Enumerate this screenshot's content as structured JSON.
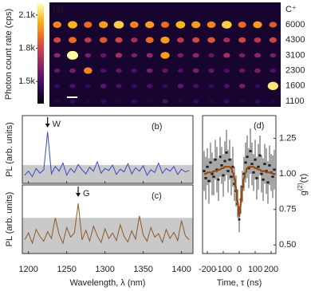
{
  "chart_data": [
    {
      "type": "heatmap",
      "panel_label": "(a)",
      "colorbar_label": "Photon count rate (cps)",
      "colormap": "inferno",
      "zlim": [
        1300,
        2200
      ],
      "zticks": [
        {
          "value": 2100,
          "label": "2.1k"
        },
        {
          "value": 1800,
          "label": "1.8k"
        },
        {
          "value": 1500,
          "label": "1.5k"
        }
      ],
      "row_labels_title": "C⁺",
      "row_labels": [
        6000,
        4300,
        3100,
        2300,
        1600,
        1100
      ],
      "row_label_color": "#9a7420",
      "z": [
        [
          1950,
          2050,
          1900,
          2000,
          2100,
          1950,
          2000,
          1900,
          2050,
          2000,
          1950,
          2100,
          1900,
          2000,
          1850
        ],
        [
          1800,
          1900,
          1750,
          1850,
          1800,
          1700,
          1900,
          2000,
          1750,
          1800,
          1850,
          1700,
          1800,
          1750,
          1800
        ],
        [
          1650,
          2200,
          1600,
          1550,
          1700,
          1600,
          1650,
          2000,
          1600,
          1650,
          1550,
          1700,
          1600,
          1650,
          1600
        ],
        [
          1550,
          1600,
          1950,
          1500,
          1550,
          1500,
          1600,
          1550,
          1500,
          1600,
          1550,
          1500,
          1550,
          1600,
          1500
        ],
        [
          1450,
          1500,
          1450,
          1550,
          1500,
          1450,
          1500,
          1450,
          1550,
          1500,
          1450,
          1500,
          1600,
          1450,
          2150
        ],
        [
          1400,
          1450,
          1400,
          1450,
          1400,
          1450,
          1400,
          1500,
          1400,
          1450,
          1400,
          1450,
          1400,
          1450,
          1400
        ]
      ]
    },
    {
      "type": "line",
      "panel_label": "(b)",
      "y_label": "PL (arb. units)",
      "annotation": {
        "text": "W",
        "x": 1225
      },
      "color": "#3a46cc",
      "band": 0.27,
      "band_color": "#c9c9c9",
      "xlim": [
        1192,
        1415
      ],
      "xticks": [
        1200,
        1250,
        1300,
        1350,
        1400
      ],
      "ylim": [
        0,
        1
      ],
      "x": [
        1195,
        1200,
        1205,
        1210,
        1215,
        1220,
        1225,
        1230,
        1235,
        1240,
        1245,
        1250,
        1255,
        1260,
        1265,
        1270,
        1275,
        1280,
        1285,
        1290,
        1295,
        1300,
        1305,
        1310,
        1315,
        1320,
        1325,
        1330,
        1335,
        1340,
        1345,
        1350,
        1355,
        1360,
        1365,
        1370,
        1375,
        1380,
        1385,
        1390,
        1395,
        1400,
        1405,
        1410
      ],
      "values": [
        0.12,
        0.18,
        0.1,
        0.22,
        0.15,
        0.2,
        0.76,
        0.14,
        0.25,
        0.18,
        0.3,
        0.12,
        0.22,
        0.16,
        0.28,
        0.2,
        0.14,
        0.24,
        0.18,
        0.32,
        0.15,
        0.22,
        0.19,
        0.27,
        0.13,
        0.21,
        0.17,
        0.29,
        0.14,
        0.23,
        0.18,
        0.26,
        0.12,
        0.2,
        0.16,
        0.3,
        0.15,
        0.22,
        0.18,
        0.25,
        0.13,
        0.21,
        0.17,
        0.19
      ]
    },
    {
      "type": "line",
      "panel_label": "(c)",
      "y_label": "PL (arb. units)",
      "annotation": {
        "text": "G",
        "x": 1265
      },
      "color": "#8a5a2a",
      "band": 0.52,
      "band_color": "#c9c9c9",
      "x_label": "Wavelength, λ (nm)",
      "xlim": [
        1192,
        1415
      ],
      "xticks": [
        1200,
        1250,
        1300,
        1350,
        1400
      ],
      "ylim": [
        0,
        1
      ],
      "x": [
        1195,
        1200,
        1205,
        1210,
        1215,
        1220,
        1225,
        1230,
        1235,
        1240,
        1245,
        1250,
        1255,
        1260,
        1265,
        1270,
        1275,
        1280,
        1285,
        1290,
        1295,
        1300,
        1305,
        1310,
        1315,
        1320,
        1325,
        1330,
        1335,
        1340,
        1345,
        1350,
        1355,
        1360,
        1365,
        1370,
        1375,
        1380,
        1385,
        1390,
        1395,
        1400,
        1405,
        1410
      ],
      "values": [
        0.2,
        0.3,
        0.15,
        0.35,
        0.25,
        0.18,
        0.32,
        0.22,
        0.52,
        0.28,
        0.15,
        0.38,
        0.24,
        0.3,
        0.73,
        0.2,
        0.34,
        0.18,
        0.4,
        0.26,
        0.16,
        0.36,
        0.22,
        0.3,
        0.19,
        0.42,
        0.25,
        0.17,
        0.33,
        0.21,
        0.55,
        0.27,
        0.18,
        0.38,
        0.24,
        0.29,
        0.16,
        0.35,
        0.22,
        0.31,
        0.19,
        0.48,
        0.26,
        0.2
      ]
    },
    {
      "type": "scatter",
      "panel_label": "(d)",
      "x_label": "Time, τ (ns)",
      "y_label": {
        "base": "g",
        "sup": "(2)",
        "rest": "(τ)"
      },
      "xlim": [
        -230,
        230
      ],
      "xticks": [
        -200,
        -100,
        0,
        100,
        200
      ],
      "ylim": [
        0.44,
        1.41
      ],
      "yticks": [
        {
          "value": 0.5,
          "label": "0.50"
        },
        {
          "value": 0.75,
          "label": "0.75"
        },
        {
          "value": 1,
          "label": "1.00"
        },
        {
          "value": 1.25,
          "label": "1.25"
        }
      ],
      "x": [
        -220,
        -210,
        -200,
        -190,
        -180,
        -170,
        -160,
        -150,
        -140,
        -130,
        -120,
        -110,
        -100,
        -90,
        -80,
        -70,
        -60,
        -50,
        -40,
        -30,
        -20,
        -10,
        0,
        10,
        20,
        30,
        40,
        50,
        60,
        70,
        80,
        90,
        100,
        110,
        120,
        130,
        140,
        150,
        160,
        170,
        180,
        190,
        200,
        210,
        220
      ],
      "series": [
        {
          "color": "#222222",
          "values": [
            1.02,
            0.97,
            1.05,
            0.95,
            1.08,
            1.0,
            0.98,
            1.1,
            1.03,
            0.96,
            1.12,
            1.06,
            0.99,
            1.09,
            1.15,
            1.02,
            1.1,
            0.98,
            1.05,
            0.93,
            0.88,
            0.79,
            0.68,
            0.82,
            0.91,
            1.0,
            1.08,
            1.12,
            1.04,
            1.16,
            1.07,
            1.01,
            1.1,
            0.97,
            1.05,
            1.13,
            1.0,
            0.96,
            1.07,
            1.02,
            0.94,
            1.06,
            1.01,
            0.98,
            1.03
          ],
          "errors": [
            0.14,
            0.15,
            0.13,
            0.16,
            0.14,
            0.15,
            0.13,
            0.14,
            0.16,
            0.15,
            0.14,
            0.13,
            0.15,
            0.14,
            0.16,
            0.15,
            0.14,
            0.13,
            0.14,
            0.12,
            0.11,
            0.1,
            0.09,
            0.1,
            0.11,
            0.12,
            0.14,
            0.15,
            0.14,
            0.16,
            0.15,
            0.13,
            0.14,
            0.15,
            0.16,
            0.14,
            0.13,
            0.15,
            0.14,
            0.16,
            0.15,
            0.14,
            0.13,
            0.15,
            0.14
          ]
        }
      ],
      "fit": {
        "color": "#9a4a10",
        "values": [
          1.0,
          1.0,
          1.01,
          1.01,
          1.01,
          1.01,
          1.02,
          1.02,
          1.02,
          1.03,
          1.03,
          1.04,
          1.04,
          1.05,
          1.05,
          1.05,
          1.05,
          1.04,
          1.01,
          0.97,
          0.9,
          0.8,
          0.7,
          0.8,
          0.9,
          0.97,
          1.01,
          1.04,
          1.05,
          1.05,
          1.05,
          1.05,
          1.04,
          1.04,
          1.03,
          1.03,
          1.02,
          1.02,
          1.02,
          1.01,
          1.01,
          1.01,
          1.01,
          1.0,
          1.0
        ]
      }
    }
  ]
}
